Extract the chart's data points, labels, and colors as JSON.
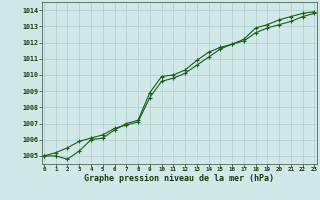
{
  "title": "Graphe pression niveau de la mer (hPa)",
  "background_color": "#d0e8e8",
  "grid_color": "#b0cccc",
  "line_color": "#1a5c1a",
  "x_min": 0,
  "x_max": 23,
  "y_min": 1004.5,
  "y_max": 1014.5,
  "y_ticks": [
    1005,
    1006,
    1007,
    1008,
    1009,
    1010,
    1011,
    1012,
    1013,
    1014
  ],
  "series1_x": [
    0,
    1,
    2,
    3,
    4,
    5,
    6,
    7,
    8,
    9,
    10,
    11,
    12,
    13,
    14,
    15,
    16,
    17,
    18,
    19,
    20,
    21,
    22,
    23
  ],
  "series1_y": [
    1005.0,
    1005.0,
    1004.8,
    1005.3,
    1006.0,
    1006.1,
    1006.6,
    1007.0,
    1007.2,
    1008.9,
    1009.9,
    1010.0,
    1010.3,
    1010.9,
    1011.4,
    1011.7,
    1011.9,
    1012.2,
    1012.9,
    1013.1,
    1013.4,
    1013.6,
    1013.8,
    1013.9
  ],
  "series2_x": [
    0,
    1,
    2,
    3,
    4,
    5,
    6,
    7,
    8,
    9,
    10,
    11,
    12,
    13,
    14,
    15,
    16,
    17,
    18,
    19,
    20,
    21,
    22,
    23
  ],
  "series2_y": [
    1005.0,
    1005.2,
    1005.5,
    1005.9,
    1006.1,
    1006.3,
    1006.7,
    1006.9,
    1007.1,
    1008.6,
    1009.6,
    1009.8,
    1010.1,
    1010.6,
    1011.1,
    1011.6,
    1011.9,
    1012.1,
    1012.6,
    1012.9,
    1013.1,
    1013.3,
    1013.6,
    1013.8
  ]
}
